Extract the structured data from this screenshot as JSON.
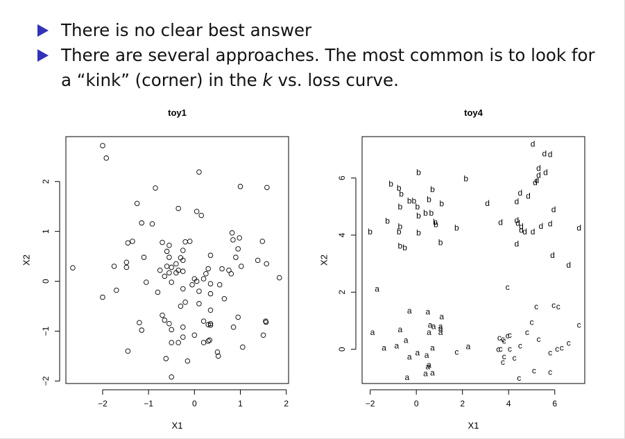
{
  "bullets": [
    {
      "text": "There is no clear best answer"
    },
    {
      "pre": "There are several approaches. The most common is to look for a “kink” (corner) in the ",
      "italic": "k",
      "post": " vs. loss curve."
    }
  ],
  "chart_data": [
    {
      "type": "scatter",
      "title": "toy1",
      "xlabel": "X1",
      "ylabel": "X2",
      "xlim": [
        -2.8,
        2.05
      ],
      "ylim": [
        -2.05,
        2.9
      ],
      "xticks": [
        -2,
        -1,
        0,
        1,
        2
      ],
      "yticks": [
        -2,
        -1,
        0,
        1,
        2
      ],
      "marker": "open-circle",
      "points": [
        [
          -2.0,
          2.72
        ],
        [
          -1.92,
          2.47
        ],
        [
          0.1,
          2.19
        ],
        [
          -0.85,
          1.87
        ],
        [
          1.0,
          1.9
        ],
        [
          1.58,
          1.88
        ],
        [
          -1.25,
          1.56
        ],
        [
          -0.35,
          1.46
        ],
        [
          0.05,
          1.4
        ],
        [
          0.15,
          1.32
        ],
        [
          -1.15,
          1.17
        ],
        [
          -0.92,
          1.15
        ],
        [
          0.82,
          0.97
        ],
        [
          0.98,
          0.87
        ],
        [
          0.84,
          0.83
        ],
        [
          -1.45,
          0.77
        ],
        [
          -1.35,
          0.8
        ],
        [
          -0.7,
          0.78
        ],
        [
          -0.2,
          0.79
        ],
        [
          -0.1,
          0.8
        ],
        [
          1.48,
          0.8
        ],
        [
          -0.55,
          0.72
        ],
        [
          -0.6,
          0.6
        ],
        [
          0.95,
          0.65
        ],
        [
          -0.25,
          0.62
        ],
        [
          -1.1,
          0.48
        ],
        [
          -0.55,
          0.48
        ],
        [
          -0.3,
          0.47
        ],
        [
          0.35,
          0.52
        ],
        [
          0.9,
          0.48
        ],
        [
          1.38,
          0.42
        ],
        [
          -0.25,
          0.42
        ],
        [
          -0.4,
          0.35
        ],
        [
          1.57,
          0.35
        ],
        [
          -2.65,
          0.27
        ],
        [
          -1.75,
          0.3
        ],
        [
          -1.48,
          0.28
        ],
        [
          -1.48,
          0.38
        ],
        [
          -0.6,
          0.3
        ],
        [
          -0.5,
          0.28
        ],
        [
          -0.75,
          0.22
        ],
        [
          1.02,
          0.3
        ],
        [
          0.6,
          0.25
        ],
        [
          0.75,
          0.22
        ],
        [
          -0.35,
          0.22
        ],
        [
          0.3,
          0.25
        ],
        [
          -0.55,
          0.17
        ],
        [
          -0.4,
          0.17
        ],
        [
          0.25,
          0.15
        ],
        [
          -0.25,
          0.2
        ],
        [
          0.8,
          0.15
        ],
        [
          -0.65,
          0.1
        ],
        [
          0.0,
          0.05
        ],
        [
          0.2,
          0.05
        ],
        [
          1.85,
          0.07
        ],
        [
          0.05,
          0.0
        ],
        [
          0.35,
          -0.05
        ],
        [
          -1.05,
          -0.02
        ],
        [
          -0.5,
          -0.02
        ],
        [
          -0.05,
          -0.07
        ],
        [
          0.55,
          -0.07
        ],
        [
          -1.7,
          -0.18
        ],
        [
          -0.8,
          -0.22
        ],
        [
          -0.25,
          -0.15
        ],
        [
          0.1,
          -0.2
        ],
        [
          0.35,
          -0.25
        ],
        [
          -2.0,
          -0.32
        ],
        [
          0.65,
          -0.35
        ],
        [
          -0.2,
          -0.42
        ],
        [
          0.1,
          -0.45
        ],
        [
          -0.3,
          -0.5
        ],
        [
          0.35,
          -0.58
        ],
        [
          -0.7,
          -0.68
        ],
        [
          -0.65,
          -0.78
        ],
        [
          0.95,
          -0.72
        ],
        [
          0.2,
          -0.8
        ],
        [
          -0.55,
          -0.85
        ],
        [
          -1.2,
          -0.83
        ],
        [
          0.3,
          -0.87
        ],
        [
          0.35,
          -0.88
        ],
        [
          0.35,
          -0.85
        ],
        [
          1.55,
          -0.8
        ],
        [
          1.56,
          -0.82
        ],
        [
          -0.25,
          -0.92
        ],
        [
          0.85,
          -0.92
        ],
        [
          -1.15,
          -0.98
        ],
        [
          -0.5,
          -0.97
        ],
        [
          0.0,
          -1.08
        ],
        [
          1.5,
          -1.08
        ],
        [
          -0.25,
          -1.12
        ],
        [
          0.3,
          -1.2
        ],
        [
          0.33,
          -1.18
        ],
        [
          0.2,
          -1.23
        ],
        [
          -0.5,
          -1.23
        ],
        [
          -0.35,
          -1.23
        ],
        [
          1.05,
          -1.32
        ],
        [
          -1.45,
          -1.4
        ],
        [
          0.5,
          -1.42
        ],
        [
          0.52,
          -1.5
        ],
        [
          -0.62,
          -1.55
        ],
        [
          -0.15,
          -1.6
        ],
        [
          -0.5,
          -1.92
        ]
      ]
    },
    {
      "type": "scatter",
      "title": "toy4",
      "xlabel": "X1",
      "ylabel": "X2",
      "xlim": [
        -2.35,
        7.3
      ],
      "ylim": [
        -1.2,
        7.45
      ],
      "xticks": [
        -2,
        0,
        2,
        4,
        6
      ],
      "yticks": [
        0,
        2,
        4,
        6
      ],
      "marker": "letter",
      "points": [
        [
          "b",
          -2.0,
          4.12
        ],
        [
          "b",
          -1.1,
          5.8
        ],
        [
          "b",
          -0.75,
          5.65
        ],
        [
          "b",
          -0.65,
          5.45
        ],
        [
          "b",
          -0.3,
          5.2
        ],
        [
          "b",
          -0.1,
          5.2
        ],
        [
          "b",
          0.05,
          5.0
        ],
        [
          "b",
          -0.7,
          5.0
        ],
        [
          "b",
          0.1,
          6.2
        ],
        [
          "b",
          0.7,
          5.6
        ],
        [
          "b",
          0.55,
          5.25
        ],
        [
          "b",
          1.1,
          5.1
        ],
        [
          "b",
          0.1,
          4.68
        ],
        [
          "b",
          0.4,
          4.78
        ],
        [
          "b",
          0.65,
          4.78
        ],
        [
          "b",
          -1.25,
          4.5
        ],
        [
          "b",
          -0.7,
          4.3
        ],
        [
          "b",
          0.82,
          4.46
        ],
        [
          "b",
          0.85,
          4.38
        ],
        [
          "b",
          -0.75,
          4.12
        ],
        [
          "b",
          0.1,
          4.08
        ],
        [
          "b",
          1.75,
          4.25
        ],
        [
          "b",
          -0.7,
          3.62
        ],
        [
          "b",
          -0.5,
          3.56
        ],
        [
          "b",
          1.05,
          3.75
        ],
        [
          "b",
          2.15,
          5.98
        ],
        [
          "d",
          5.05,
          7.2
        ],
        [
          "d",
          5.55,
          6.85
        ],
        [
          "d",
          5.8,
          6.83
        ],
        [
          "d",
          5.3,
          6.35
        ],
        [
          "d",
          5.3,
          6.1
        ],
        [
          "d",
          5.6,
          6.2
        ],
        [
          "d",
          5.22,
          5.92
        ],
        [
          "d",
          5.15,
          5.85
        ],
        [
          "d",
          4.5,
          5.48
        ],
        [
          "d",
          4.85,
          5.37
        ],
        [
          "d",
          4.35,
          5.18
        ],
        [
          "d",
          3.08,
          5.12
        ],
        [
          "d",
          5.95,
          4.9
        ],
        [
          "d",
          4.35,
          4.52
        ],
        [
          "d",
          3.65,
          4.45
        ],
        [
          "d",
          4.4,
          4.42
        ],
        [
          "d",
          4.55,
          4.3
        ],
        [
          "d",
          5.8,
          4.4
        ],
        [
          "d",
          5.4,
          4.32
        ],
        [
          "d",
          4.55,
          4.18
        ],
        [
          "d",
          4.7,
          4.12
        ],
        [
          "d",
          5.05,
          4.12
        ],
        [
          "d",
          7.05,
          4.25
        ],
        [
          "d",
          4.35,
          3.7
        ],
        [
          "d",
          5.9,
          3.3
        ],
        [
          "d",
          6.6,
          2.95
        ],
        [
          "a",
          -1.7,
          2.12
        ],
        [
          "a",
          -1.9,
          0.6
        ],
        [
          "a",
          -0.7,
          0.7
        ],
        [
          "a",
          -1.4,
          0.05
        ],
        [
          "a",
          -0.85,
          0.13
        ],
        [
          "a",
          -0.45,
          0.32
        ],
        [
          "a",
          -0.3,
          -0.27
        ],
        [
          "a",
          0.05,
          -0.12
        ],
        [
          "a",
          -0.4,
          -0.98
        ],
        [
          "a",
          -0.3,
          1.35
        ],
        [
          "a",
          0.5,
          1.32
        ],
        [
          "a",
          1.1,
          1.15
        ],
        [
          "a",
          0.6,
          0.85
        ],
        [
          "a",
          0.75,
          0.8
        ],
        [
          "a",
          1.05,
          0.8
        ],
        [
          "a",
          1.05,
          0.72
        ],
        [
          "a",
          0.55,
          0.6
        ],
        [
          "a",
          1.05,
          0.6
        ],
        [
          "a",
          0.7,
          0.05
        ],
        [
          "a",
          0.45,
          -0.2
        ],
        [
          "a",
          0.55,
          -0.55
        ],
        [
          "a",
          0.5,
          -0.6
        ],
        [
          "a",
          0.4,
          -0.85
        ],
        [
          "a",
          0.7,
          -0.82
        ],
        [
          "a",
          2.25,
          0.1
        ],
        [
          "c",
          3.95,
          2.18
        ],
        [
          "c",
          4.05,
          0.5
        ],
        [
          "c",
          4.8,
          0.6
        ],
        [
          "c",
          5.0,
          0.95
        ],
        [
          "c",
          5.2,
          1.5
        ],
        [
          "c",
          5.95,
          1.55
        ],
        [
          "c",
          6.15,
          1.5
        ],
        [
          "c",
          7.05,
          0.85
        ],
        [
          "c",
          3.6,
          0.4
        ],
        [
          "c",
          3.8,
          0.3
        ],
        [
          "c",
          3.75,
          0.35
        ],
        [
          "c",
          3.95,
          0.48
        ],
        [
          "c",
          5.3,
          0.35
        ],
        [
          "c",
          6.6,
          0.22
        ],
        [
          "c",
          6.3,
          0.05
        ],
        [
          "c",
          6.1,
          0.02
        ],
        [
          "c",
          3.65,
          0.02
        ],
        [
          "c",
          3.55,
          0.0
        ],
        [
          "c",
          4.5,
          0.12
        ],
        [
          "c",
          4.05,
          0.02
        ],
        [
          "c",
          3.8,
          -0.25
        ],
        [
          "c",
          4.25,
          -0.3
        ],
        [
          "c",
          3.75,
          -0.45
        ],
        [
          "c",
          5.8,
          -0.12
        ],
        [
          "c",
          1.75,
          -0.1
        ],
        [
          "c",
          5.1,
          -0.75
        ],
        [
          "c",
          5.8,
          -0.8
        ],
        [
          "c",
          4.45,
          -1.0
        ]
      ]
    }
  ]
}
